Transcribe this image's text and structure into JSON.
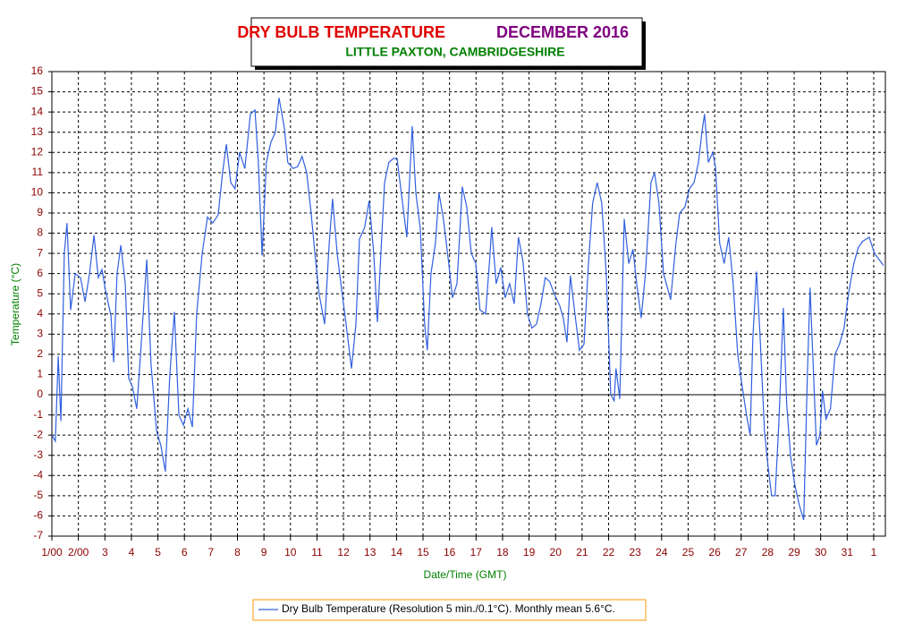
{
  "chart_data": {
    "type": "line",
    "title": "DRY BULB TEMPERATURE",
    "title_color": "#e00000",
    "title_period": "DECEMBER 2016",
    "title_period_color": "#800080",
    "subtitle": "LITTLE PAXTON, CAMBRIDGESHIRE",
    "subtitle_color": "#008000",
    "x_label": "Date/Time (GMT)",
    "y_label": "Temperature (°C)",
    "axis_label_color": "#008000",
    "grid": true,
    "xlim": [
      1,
      32.44
    ],
    "ylim": [
      -7,
      16
    ],
    "xticks": [
      {
        "value": 1,
        "label": "1/00"
      },
      {
        "value": 2,
        "label": "2/00"
      },
      3,
      4,
      5,
      6,
      7,
      8,
      9,
      10,
      11,
      12,
      13,
      14,
      15,
      16,
      17,
      18,
      19,
      20,
      21,
      22,
      23,
      24,
      25,
      26,
      27,
      28,
      29,
      30,
      31,
      {
        "value": 32,
        "label": "1"
      }
    ],
    "yticks": [
      -7,
      -6,
      -5,
      -4,
      -3,
      -2,
      -1,
      0,
      1,
      2,
      3,
      4,
      5,
      6,
      7,
      8,
      9,
      10,
      11,
      12,
      13,
      14,
      15,
      16
    ],
    "x": [
      1.0,
      1.13,
      1.24,
      1.34,
      1.47,
      1.57,
      1.71,
      1.88,
      2.08,
      2.25,
      2.42,
      2.59,
      2.75,
      2.89,
      3.02,
      3.23,
      3.33,
      3.46,
      3.6,
      3.77,
      3.9,
      4.04,
      4.2,
      4.37,
      4.58,
      4.74,
      4.95,
      5.11,
      5.28,
      5.45,
      5.62,
      5.79,
      5.96,
      6.13,
      6.3,
      6.46,
      6.67,
      6.87,
      7.07,
      7.27,
      7.44,
      7.58,
      7.75,
      7.91,
      8.08,
      8.28,
      8.49,
      8.66,
      8.79,
      8.93,
      9.09,
      9.26,
      9.43,
      9.57,
      9.77,
      9.9,
      10.1,
      10.27,
      10.44,
      10.61,
      10.78,
      10.92,
      11.08,
      11.29,
      11.46,
      11.59,
      11.76,
      11.93,
      12.1,
      12.3,
      12.47,
      12.6,
      12.8,
      12.97,
      13.14,
      13.28,
      13.41,
      13.55,
      13.71,
      13.88,
      14.02,
      14.18,
      14.39,
      14.59,
      14.73,
      14.9,
      15.06,
      15.16,
      15.3,
      15.47,
      15.6,
      15.77,
      15.97,
      16.11,
      16.28,
      16.48,
      16.65,
      16.82,
      16.99,
      17.15,
      17.36,
      17.52,
      17.59,
      17.76,
      17.93,
      18.1,
      18.27,
      18.44,
      18.6,
      18.77,
      18.94,
      19.11,
      19.28,
      19.45,
      19.61,
      19.78,
      19.95,
      20.16,
      20.29,
      20.43,
      20.56,
      20.73,
      20.9,
      21.07,
      21.24,
      21.4,
      21.57,
      21.74,
      21.91,
      22.08,
      22.21,
      22.28,
      22.42,
      22.59,
      22.76,
      22.92,
      23.06,
      23.23,
      23.39,
      23.6,
      23.73,
      23.9,
      24.07,
      24.24,
      24.34,
      24.54,
      24.68,
      24.88,
      25.05,
      25.22,
      25.39,
      25.52,
      25.62,
      25.76,
      25.93,
      26.03,
      26.19,
      26.36,
      26.53,
      26.7,
      26.87,
      27.03,
      27.2,
      27.34,
      27.44,
      27.58,
      27.71,
      27.88,
      28.01,
      28.15,
      28.28,
      28.42,
      28.59,
      28.72,
      28.86,
      29.03,
      29.2,
      29.36,
      29.5,
      29.6,
      29.73,
      29.84,
      29.97,
      30.07,
      30.2,
      30.37,
      30.54,
      30.71,
      30.88,
      31.05,
      31.25,
      31.42,
      31.59,
      31.83,
      32.03,
      32.2,
      32.37
    ],
    "series": [
      {
        "name": "Dry Bulb Temperature (Resolution 5 min./0.1°C). Monthly mean 5.6°C.",
        "color": "#3060e0",
        "values": [
          -2,
          -2.3,
          1.9,
          -1.3,
          7,
          8.5,
          4.2,
          6,
          5.8,
          4.6,
          6,
          7.9,
          5.8,
          6.2,
          5.2,
          3.9,
          1.6,
          6,
          7.4,
          5.5,
          0.8,
          0.4,
          -0.7,
          2.5,
          6.7,
          1.5,
          -1.8,
          -2.5,
          -3.8,
          1,
          4.1,
          -1,
          -1.5,
          -0.7,
          -1.6,
          4,
          7,
          8.8,
          8.5,
          8.9,
          11,
          12.4,
          10.5,
          10.2,
          12,
          11.2,
          13.9,
          14.1,
          11.5,
          6.9,
          11.5,
          12.5,
          13,
          14.7,
          13.2,
          11.5,
          11.2,
          11.3,
          11.8,
          11,
          9,
          7,
          5,
          3.5,
          7.5,
          9.7,
          7,
          5.2,
          3.5,
          1.3,
          3.5,
          7.7,
          8.3,
          9.6,
          7,
          3.6,
          7,
          10.5,
          11.5,
          11.7,
          11.7,
          10,
          7.8,
          13.3,
          10,
          8.2,
          3.5,
          2.2,
          6,
          7.5,
          10,
          8.7,
          6.5,
          4.8,
          5.5,
          10.3,
          9.3,
          7,
          6.5,
          4.2,
          4,
          6.8,
          8.3,
          5.5,
          6.3,
          4.8,
          5.5,
          4.5,
          7.8,
          6.6,
          4,
          3.3,
          3.5,
          4.5,
          5.8,
          5.6,
          5,
          4.4,
          3.8,
          2.6,
          5.9,
          4,
          2.2,
          2.5,
          6.5,
          9.5,
          10.5,
          9.5,
          6,
          0,
          -0.3,
          1.3,
          -0.2,
          8.7,
          6.5,
          7.2,
          5.5,
          3.8,
          6,
          10.5,
          11,
          9.5,
          6,
          5.2,
          4.7,
          7.5,
          9,
          9.3,
          10.2,
          10.5,
          11.5,
          13,
          13.9,
          11.5,
          12,
          11.3,
          7.5,
          6.5,
          7.8,
          5.5,
          2,
          0.5,
          -1,
          -2,
          2.8,
          6.1,
          3,
          -1.8,
          -3.5,
          -5,
          -5,
          -1.5,
          4.3,
          -0.5,
          -3,
          -4.5,
          -5.5,
          -6.2,
          1,
          5.3,
          1,
          -2.5,
          -2,
          0.2,
          -1.2,
          -0.7,
          2,
          2.5,
          3.3,
          5,
          6.5,
          7.3,
          7.6,
          7.8,
          7,
          6.7,
          6.4
        ]
      }
    ],
    "legend_color": "#ff9900"
  }
}
